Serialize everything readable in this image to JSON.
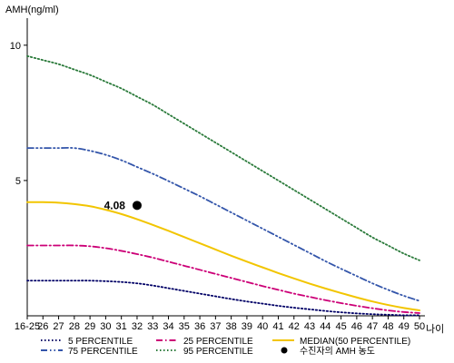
{
  "chart_data": {
    "type": "line",
    "ylabel": "AMH(ng/ml)",
    "xlabel": "나이",
    "ylim": [
      0,
      11
    ],
    "yticks": [
      5,
      10
    ],
    "categories": [
      "16-25",
      "26",
      "27",
      "28",
      "29",
      "30",
      "31",
      "32",
      "33",
      "34",
      "35",
      "36",
      "37",
      "38",
      "39",
      "40",
      "41",
      "42",
      "43",
      "44",
      "45",
      "46",
      "47",
      "48",
      "49",
      "50"
    ],
    "series": [
      {
        "name": "5 PERCENTILE",
        "color": "#000066",
        "dash": "dot",
        "values": [
          1.3,
          1.3,
          1.3,
          1.3,
          1.3,
          1.28,
          1.25,
          1.2,
          1.12,
          1.02,
          0.92,
          0.82,
          0.72,
          0.62,
          0.53,
          0.45,
          0.37,
          0.3,
          0.24,
          0.18,
          0.13,
          0.09,
          0.06,
          0.04,
          0.02,
          0.02
        ]
      },
      {
        "name": "25 PERCENTILE",
        "color": "#cc0077",
        "dash": "dashdot",
        "values": [
          2.6,
          2.6,
          2.6,
          2.6,
          2.57,
          2.5,
          2.4,
          2.28,
          2.15,
          2.0,
          1.85,
          1.7,
          1.55,
          1.4,
          1.25,
          1.1,
          0.96,
          0.82,
          0.7,
          0.58,
          0.47,
          0.37,
          0.28,
          0.2,
          0.14,
          0.1
        ]
      },
      {
        "name": "MEDIAN(50 PERCENTILE)",
        "color": "#f2c500",
        "dash": "solid",
        "values": [
          4.2,
          4.2,
          4.18,
          4.13,
          4.05,
          3.92,
          3.76,
          3.57,
          3.36,
          3.14,
          2.91,
          2.68,
          2.45,
          2.22,
          2.0,
          1.79,
          1.58,
          1.38,
          1.19,
          1.01,
          0.84,
          0.68,
          0.53,
          0.4,
          0.29,
          0.2
        ]
      },
      {
        "name": "75 PERCENTILE",
        "color": "#3355aa",
        "dash": "dashdotdot",
        "values": [
          6.2,
          6.2,
          6.2,
          6.2,
          6.1,
          5.95,
          5.75,
          5.5,
          5.25,
          4.98,
          4.7,
          4.42,
          4.12,
          3.82,
          3.52,
          3.22,
          2.92,
          2.62,
          2.32,
          2.02,
          1.74,
          1.47,
          1.2,
          0.96,
          0.74,
          0.55
        ]
      },
      {
        "name": "95 PERCENTILE",
        "color": "#2a7a3a",
        "dash": "dot",
        "values": [
          9.6,
          9.45,
          9.3,
          9.1,
          8.9,
          8.65,
          8.4,
          8.1,
          7.8,
          7.45,
          7.1,
          6.75,
          6.4,
          6.05,
          5.7,
          5.35,
          5.0,
          4.65,
          4.3,
          3.95,
          3.6,
          3.25,
          2.9,
          2.6,
          2.3,
          2.05
        ]
      }
    ],
    "marker": {
      "label": "수진자의 AMH 농도",
      "x": "32",
      "y": 4.08,
      "value_label": "4.08",
      "color": "#000000"
    }
  }
}
